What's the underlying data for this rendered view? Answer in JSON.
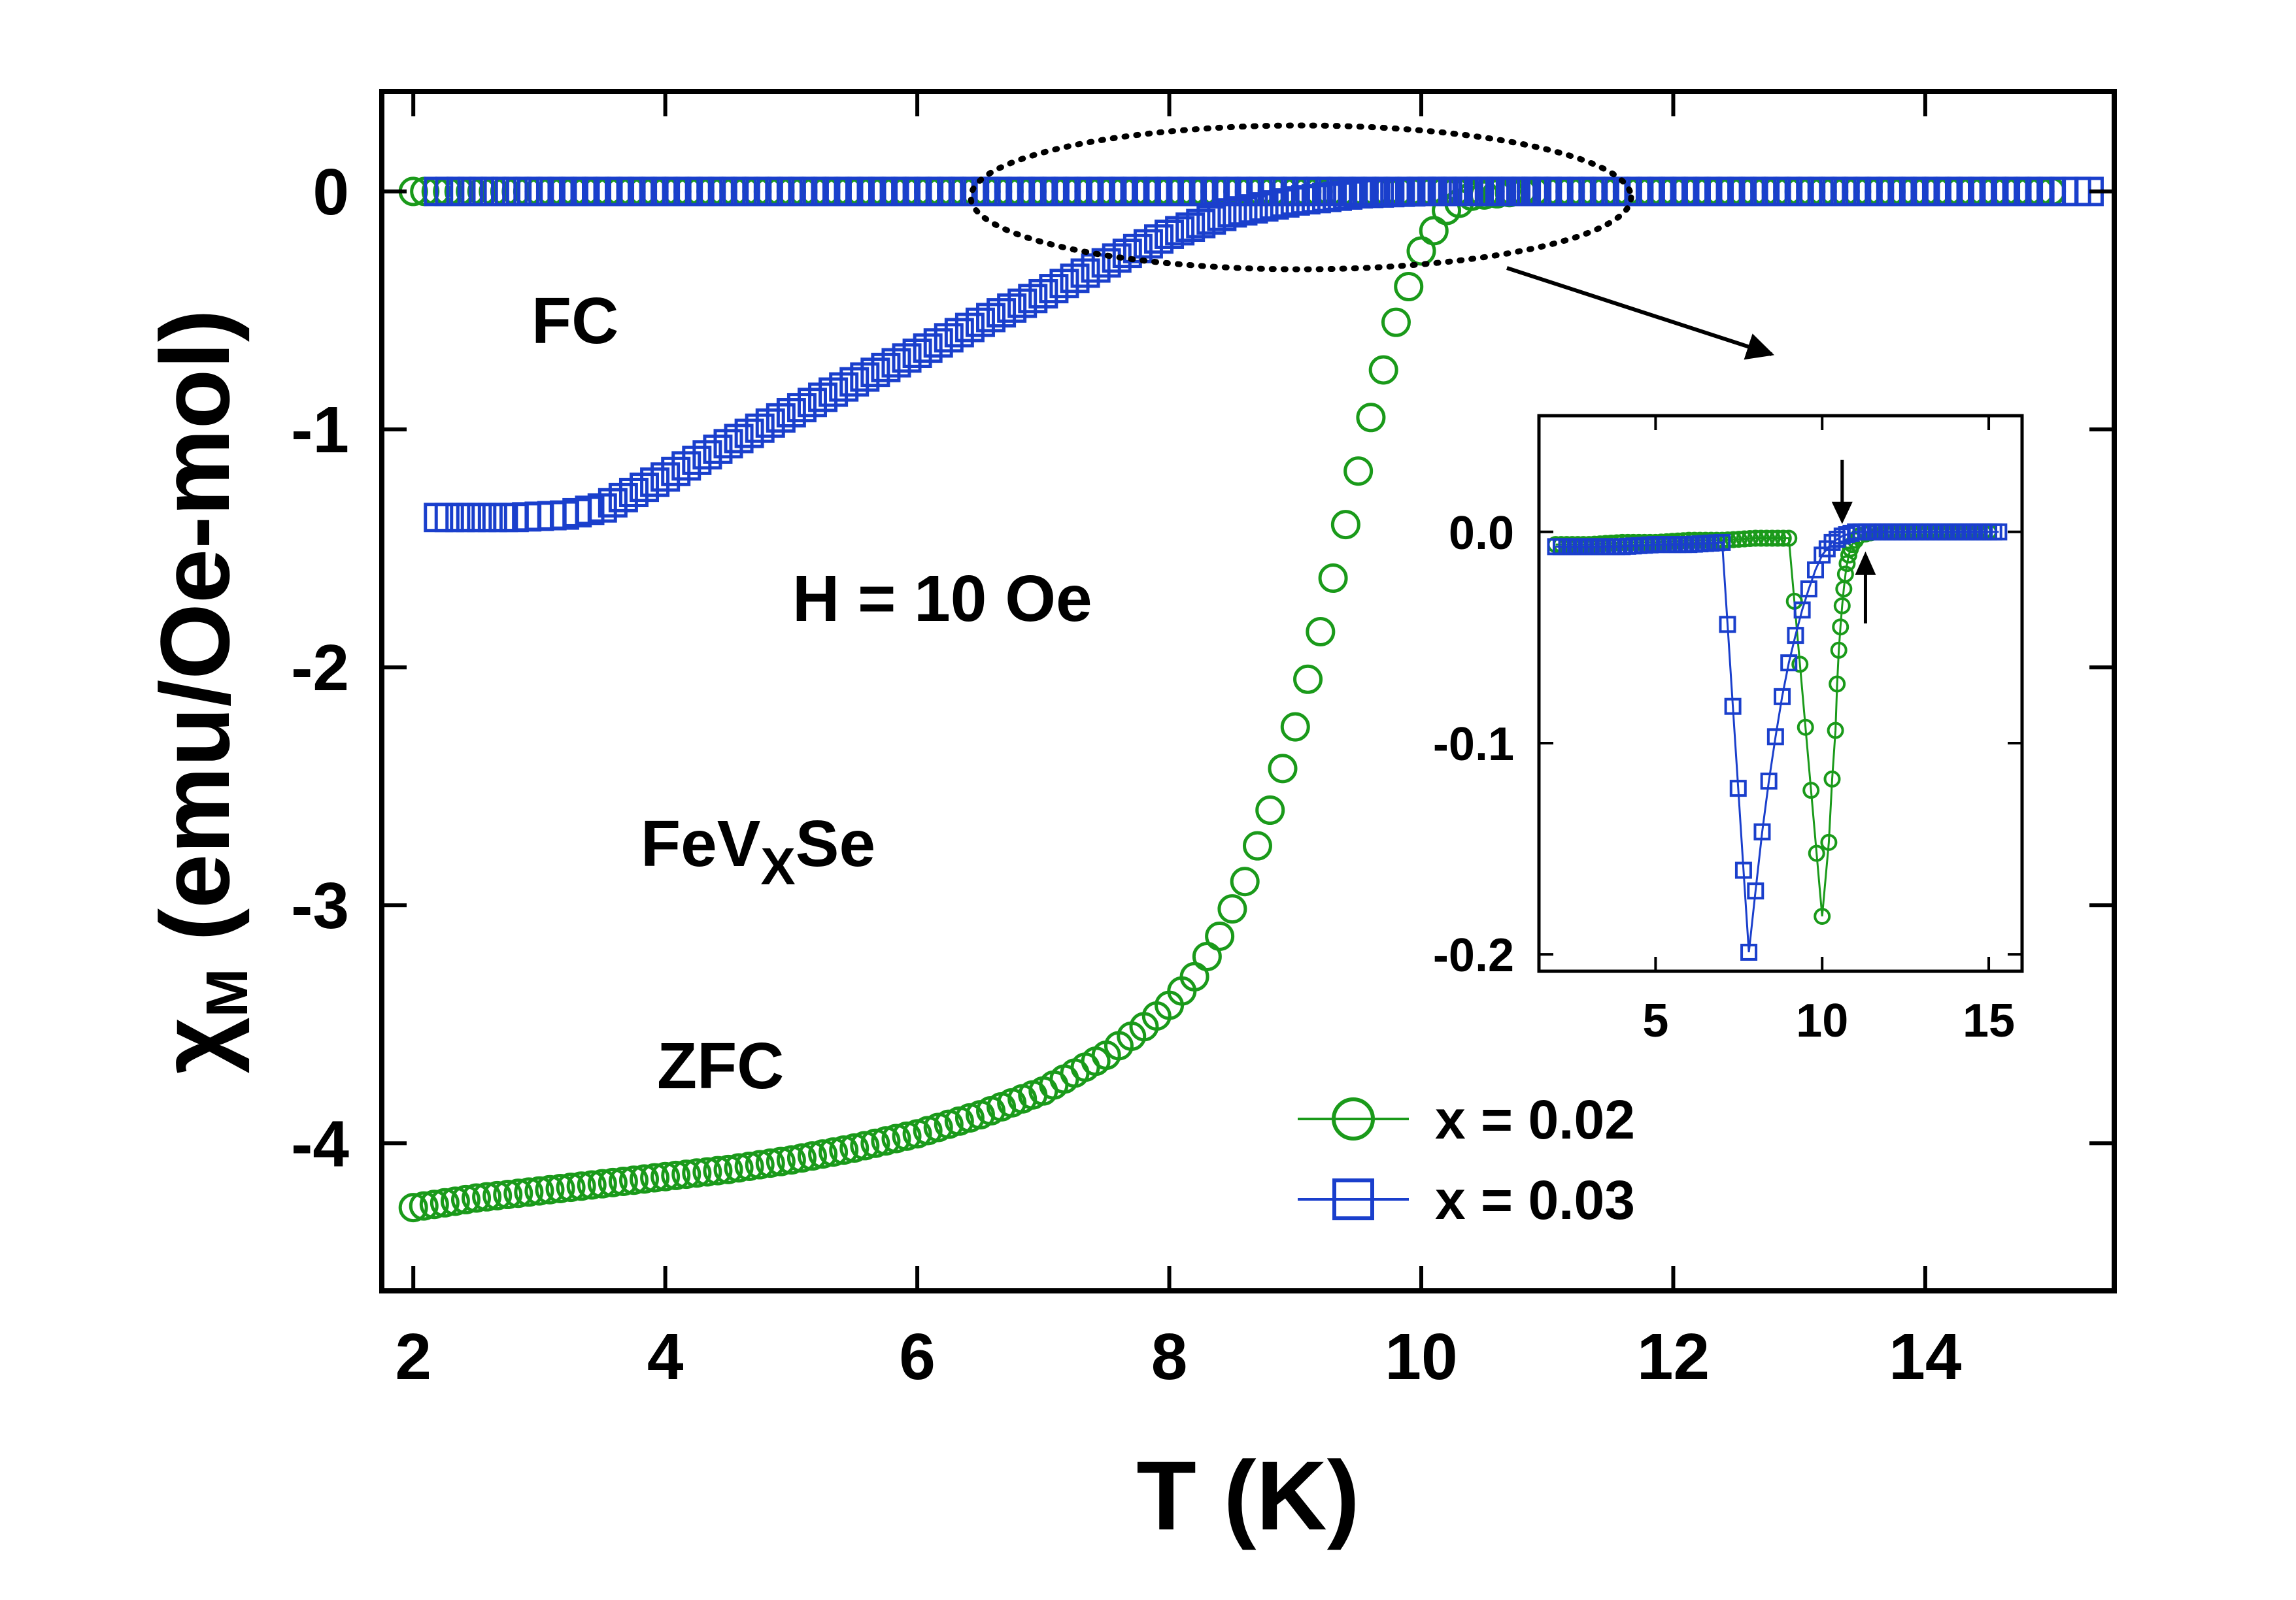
{
  "chart_data": [
    {
      "type": "scatter",
      "role": "main",
      "xlabel": "T (K)",
      "ylabel_symbol": "χ",
      "ylabel_subscript": "M",
      "ylabel_units": " (emu/Oe-mol)",
      "xlim": [
        1.75,
        15.5
      ],
      "ylim": [
        -4.62,
        0.42
      ],
      "xticks": [
        2,
        4,
        6,
        8,
        10,
        12,
        14
      ],
      "xtick_labels": [
        "2",
        "4",
        "6",
        "8",
        "10",
        "12",
        "14"
      ],
      "yticks": [
        0,
        -1,
        -2,
        -3,
        -4
      ],
      "ytick_labels": [
        "0",
        "-1",
        "-2",
        "-3",
        "-4"
      ],
      "annotations": {
        "fc": "FC",
        "field": "H = 10 Oe",
        "formula_main": "FeV",
        "formula_sub": "X",
        "formula_end": "Se",
        "zfc": "ZFC"
      },
      "legend": [
        {
          "label": "x = 0.02",
          "marker": "circle",
          "color": "#1a9a1a"
        },
        {
          "label": "x = 0.03",
          "marker": "square",
          "color": "#1a3fcc"
        }
      ],
      "series": [
        {
          "name": "x = 0.02 ZFC",
          "color": "#1a9a1a",
          "marker": "circle",
          "x": [
            2.0,
            2.5,
            3.0,
            3.5,
            4.0,
            4.5,
            5.0,
            5.5,
            6.0,
            6.5,
            7.0,
            7.5,
            7.8,
            8.0,
            8.2,
            8.4,
            8.6,
            8.8,
            9.0,
            9.2,
            9.4,
            9.6,
            9.8,
            10.0,
            10.2,
            10.4,
            10.6,
            10.8,
            11.0
          ],
          "y": [
            -4.27,
            -4.23,
            -4.2,
            -4.17,
            -4.14,
            -4.11,
            -4.07,
            -4.02,
            -3.96,
            -3.88,
            -3.78,
            -3.63,
            -3.51,
            -3.42,
            -3.3,
            -3.13,
            -2.9,
            -2.6,
            -2.25,
            -1.85,
            -1.4,
            -0.95,
            -0.55,
            -0.25,
            -0.08,
            -0.02,
            -0.01,
            0.0,
            0.0
          ]
        },
        {
          "name": "x = 0.02 FC",
          "color": "#1a9a1a",
          "marker": "circle",
          "x": [
            2.0,
            3.0,
            4.0,
            5.0,
            6.0,
            7.0,
            8.0,
            9.0,
            10.0,
            11.0,
            12.0,
            13.0,
            14.0,
            15.0
          ],
          "y": [
            0.0,
            0.0,
            0.0,
            0.0,
            0.0,
            0.0,
            0.0,
            0.0,
            0.0,
            0.0,
            0.0,
            0.0,
            0.0,
            0.0
          ]
        },
        {
          "name": "x = 0.03 ZFC",
          "color": "#1a3fcc",
          "marker": "square",
          "x": [
            2.2,
            2.8,
            3.2,
            3.5,
            4.0,
            4.5,
            5.0,
            5.5,
            6.0,
            6.5,
            7.0,
            7.5,
            8.0,
            8.5,
            9.0,
            9.5,
            10.0,
            10.5,
            11.0
          ],
          "y": [
            -1.37,
            -1.37,
            -1.36,
            -1.33,
            -1.2,
            -1.06,
            -0.93,
            -0.8,
            -0.68,
            -0.55,
            -0.43,
            -0.3,
            -0.18,
            -0.09,
            -0.04,
            -0.01,
            0.0,
            0.0,
            0.0
          ]
        },
        {
          "name": "x = 0.03 FC",
          "color": "#1a3fcc",
          "marker": "square",
          "x": [
            2.2,
            3.0,
            4.0,
            5.0,
            6.0,
            7.0,
            8.0,
            9.0,
            10.0,
            11.0,
            12.0,
            13.0,
            14.0,
            15.0,
            15.3
          ],
          "y": [
            0.0,
            0.0,
            0.0,
            0.0,
            0.0,
            0.0,
            0.0,
            0.0,
            0.0,
            0.0,
            0.0,
            0.0,
            0.0,
            0.0,
            0.0
          ]
        }
      ]
    },
    {
      "type": "scatter",
      "role": "inset",
      "xlim": [
        1.5,
        16.0
      ],
      "ylim": [
        -0.208,
        0.055
      ],
      "xticks": [
        5,
        10,
        15
      ],
      "xtick_labels": [
        "5",
        "10",
        "15"
      ],
      "yticks": [
        0,
        -0.1,
        -0.2
      ],
      "ytick_labels": [
        "0.0",
        "-0.1",
        "-0.2"
      ],
      "onset_arrows_T": [
        10.6,
        11.3
      ],
      "series": [
        {
          "name": "x = 0.02",
          "color": "#1a9a1a",
          "marker": "circle",
          "x": [
            2.0,
            3.0,
            4.0,
            5.0,
            6.0,
            7.0,
            8.0,
            9.0,
            10.0,
            10.2,
            10.3,
            10.4,
            10.45,
            10.5,
            10.55,
            10.6,
            10.65,
            10.7,
            10.75,
            10.8,
            10.85,
            10.9,
            11.0,
            11.1,
            11.3,
            11.6,
            12.0,
            13.0,
            14.0,
            15.0
          ],
          "y": [
            -0.006,
            -0.006,
            -0.005,
            -0.005,
            -0.004,
            -0.004,
            -0.003,
            -0.003,
            -0.182,
            -0.147,
            -0.117,
            -0.094,
            -0.072,
            -0.056,
            -0.045,
            -0.035,
            -0.027,
            -0.02,
            -0.015,
            -0.011,
            -0.008,
            -0.006,
            -0.004,
            -0.002,
            -0.001,
            0.0,
            0.0,
            0.0,
            0.0,
            0.0
          ]
        },
        {
          "name": "x = 0.03",
          "color": "#1a3fcc",
          "marker": "square",
          "x": [
            2.0,
            3.0,
            4.0,
            5.0,
            6.0,
            7.0,
            7.8,
            8.0,
            8.2,
            8.4,
            8.6,
            8.8,
            9.0,
            9.2,
            9.4,
            9.6,
            9.8,
            10.0,
            10.3,
            10.6,
            11.0,
            12.0,
            13.0,
            14.0,
            15.0,
            15.3
          ],
          "y": [
            -0.007,
            -0.007,
            -0.007,
            -0.006,
            -0.006,
            -0.005,
            -0.199,
            -0.17,
            -0.142,
            -0.118,
            -0.097,
            -0.078,
            -0.062,
            -0.049,
            -0.037,
            -0.027,
            -0.018,
            -0.011,
            -0.005,
            -0.002,
            0.0,
            0.0,
            0.0,
            0.0,
            0.0,
            0.0
          ]
        }
      ]
    }
  ]
}
